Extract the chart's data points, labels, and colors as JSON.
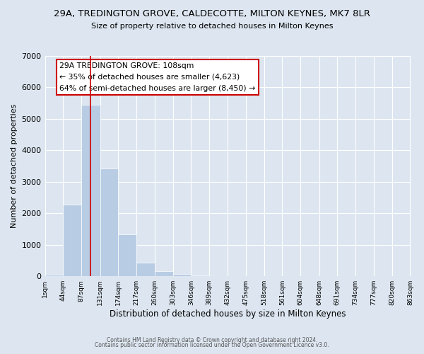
{
  "title": "29A, TREDINGTON GROVE, CALDECOTTE, MILTON KEYNES, MK7 8LR",
  "subtitle": "Size of property relative to detached houses in Milton Keynes",
  "xlabel": "Distribution of detached houses by size in Milton Keynes",
  "ylabel": "Number of detached properties",
  "bin_edges": [
    1,
    44,
    87,
    131,
    174,
    217,
    260,
    303,
    346,
    389,
    432,
    475,
    518,
    561,
    604,
    648,
    691,
    734,
    777,
    820,
    863
  ],
  "bar_heights": [
    60,
    2280,
    5450,
    3430,
    1330,
    440,
    170,
    80,
    20,
    5,
    0,
    0,
    0,
    0,
    0,
    0,
    0,
    0,
    0,
    0
  ],
  "bar_color": "#b8cce4",
  "bar_edge_color": "#ffffff",
  "red_line_x": 108,
  "ylim": [
    0,
    7000
  ],
  "yticks": [
    0,
    1000,
    2000,
    3000,
    4000,
    5000,
    6000,
    7000
  ],
  "annotation_title": "29A TREDINGTON GROVE: 108sqm",
  "annotation_line1": "← 35% of detached houses are smaller (4,623)",
  "annotation_line2": "64% of semi-detached houses are larger (8,450) →",
  "annotation_box_facecolor": "#ffffff",
  "annotation_box_edgecolor": "#cc0000",
  "footer_line1": "Contains HM Land Registry data © Crown copyright and database right 2024.",
  "footer_line2": "Contains public sector information licensed under the Open Government Licence v3.0.",
  "background_color": "#dde6f0",
  "plot_background_color": "#dde6f0",
  "grid_color": "#ffffff",
  "tick_labels": [
    "1sqm",
    "44sqm",
    "87sqm",
    "131sqm",
    "174sqm",
    "217sqm",
    "260sqm",
    "303sqm",
    "346sqm",
    "389sqm",
    "432sqm",
    "475sqm",
    "518sqm",
    "561sqm",
    "604sqm",
    "648sqm",
    "691sqm",
    "734sqm",
    "777sqm",
    "820sqm",
    "863sqm"
  ]
}
